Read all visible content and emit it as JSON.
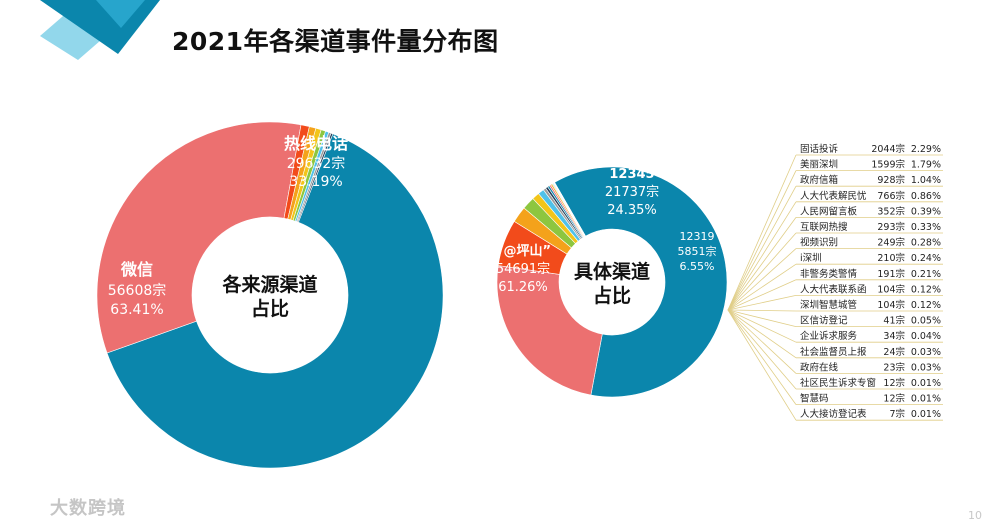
{
  "title": "2021年各渠道事件量分布图",
  "watermark": "大数跨境",
  "page_number": "10",
  "colors": {
    "teal": "#0b86ac",
    "salmon": "#ec7070",
    "orange_red": "#f24b1b",
    "orange": "#f4a21b",
    "yellow": "#f2c51a",
    "green": "#8dc63f",
    "light_blue": "#4fc1e9",
    "gray": "#9a9a9a",
    "navy": "#1f3b57",
    "leader": "#e0ce88",
    "corner_light": "#7fd0e8",
    "corner_mid": "#2aa8cf",
    "corner_dark": "#0b86ac"
  },
  "chart_data": [
    {
      "type": "pie",
      "center_label": [
        "各来源渠道",
        "占比"
      ],
      "slices": [
        {
          "name": "微信",
          "value": 56608,
          "percent": "63.41%",
          "count_label": "56608宗",
          "color": "#0b86ac"
        },
        {
          "name": "热线电话",
          "value": 29632,
          "percent": "33.19%",
          "count_label": "29632宗",
          "color": "#ec7070"
        },
        {
          "name": "",
          "value": 700,
          "color": "#f24b1b"
        },
        {
          "name": "",
          "value": 550,
          "color": "#f4a21b"
        },
        {
          "name": "",
          "value": 450,
          "color": "#f2c51a"
        },
        {
          "name": "",
          "value": 380,
          "color": "#8dc63f"
        },
        {
          "name": "",
          "value": 280,
          "color": "#4fc1e9"
        },
        {
          "name": "",
          "value": 200,
          "color": "#9a9a9a"
        },
        {
          "name": "",
          "value": 150,
          "color": "#1f3b57"
        }
      ]
    },
    {
      "type": "pie",
      "center_label": [
        "具体渠道",
        "占比"
      ],
      "slices": [
        {
          "name": "“@坪山”",
          "value": 54691,
          "percent": "61.26%",
          "count_label": "54691宗",
          "color": "#0b86ac"
        },
        {
          "name": "12345",
          "value": 21737,
          "percent": "24.35%",
          "count_label": "21737宗",
          "color": "#ec7070"
        },
        {
          "name": "12319",
          "value": 5851,
          "percent": "6.55%",
          "count_label": "5851宗",
          "color": "#f24b1b"
        },
        {
          "name": "",
          "value": 2044,
          "color": "#f4a21b"
        },
        {
          "name": "",
          "value": 1599,
          "color": "#8dc63f"
        },
        {
          "name": "",
          "value": 928,
          "color": "#f2c51a"
        },
        {
          "name": "",
          "value": 766,
          "color": "#4fc1e9"
        },
        {
          "name": "",
          "value": 352,
          "color": "#9a9a9a"
        },
        {
          "name": "",
          "value": 293,
          "color": "#1f3b57"
        },
        {
          "name": "",
          "value": 249,
          "color": "#0b86ac"
        },
        {
          "name": "",
          "value": 210,
          "color": "#ec7070"
        },
        {
          "name": "",
          "value": 191,
          "color": "#f4a21b"
        },
        {
          "name": "",
          "value": 104,
          "color": "#8dc63f"
        },
        {
          "name": "",
          "value": 104,
          "color": "#4fc1e9"
        },
        {
          "name": "",
          "value": 41,
          "color": "#9a9a9a"
        },
        {
          "name": "",
          "value": 34,
          "color": "#1f3b57"
        },
        {
          "name": "",
          "value": 24,
          "color": "#f2c51a"
        },
        {
          "name": "",
          "value": 23,
          "color": "#0b86ac"
        },
        {
          "name": "",
          "value": 12,
          "color": "#ec7070"
        },
        {
          "name": "",
          "value": 12,
          "color": "#f24b1b"
        },
        {
          "name": "",
          "value": 7,
          "color": "#8dc63f"
        }
      ],
      "breakdown_table": [
        {
          "name": "固话投诉",
          "count": "2044宗",
          "percent": "2.29%"
        },
        {
          "name": "美丽深圳",
          "count": "1599宗",
          "percent": "1.79%"
        },
        {
          "name": "政府信箱",
          "count": "928宗",
          "percent": "1.04%"
        },
        {
          "name": "人大代表解民忧",
          "count": "766宗",
          "percent": "0.86%"
        },
        {
          "name": "人民网留言板",
          "count": "352宗",
          "percent": "0.39%"
        },
        {
          "name": "互联网热搜",
          "count": "293宗",
          "percent": "0.33%"
        },
        {
          "name": "视频识别",
          "count": "249宗",
          "percent": "0.28%"
        },
        {
          "name": "i深圳",
          "count": "210宗",
          "percent": "0.24%"
        },
        {
          "name": "非警务类警情",
          "count": "191宗",
          "percent": "0.21%"
        },
        {
          "name": "人大代表联系函",
          "count": "104宗",
          "percent": "0.12%"
        },
        {
          "name": "深圳智慧城管",
          "count": "104宗",
          "percent": "0.12%"
        },
        {
          "name": "区信访登记",
          "count": "41宗",
          "percent": "0.05%"
        },
        {
          "name": "企业诉求服务",
          "count": "34宗",
          "percent": "0.04%"
        },
        {
          "name": "社会监督员上报",
          "count": "24宗",
          "percent": "0.03%"
        },
        {
          "name": "政府在线",
          "count": "23宗",
          "percent": "0.03%"
        },
        {
          "name": "社区民生诉求专窗",
          "count": "12宗",
          "percent": "0.01%"
        },
        {
          "name": "智慧码",
          "count": "12宗",
          "percent": "0.01%"
        },
        {
          "name": "人大接访登记表",
          "count": "7宗",
          "percent": "0.01%"
        }
      ]
    }
  ]
}
